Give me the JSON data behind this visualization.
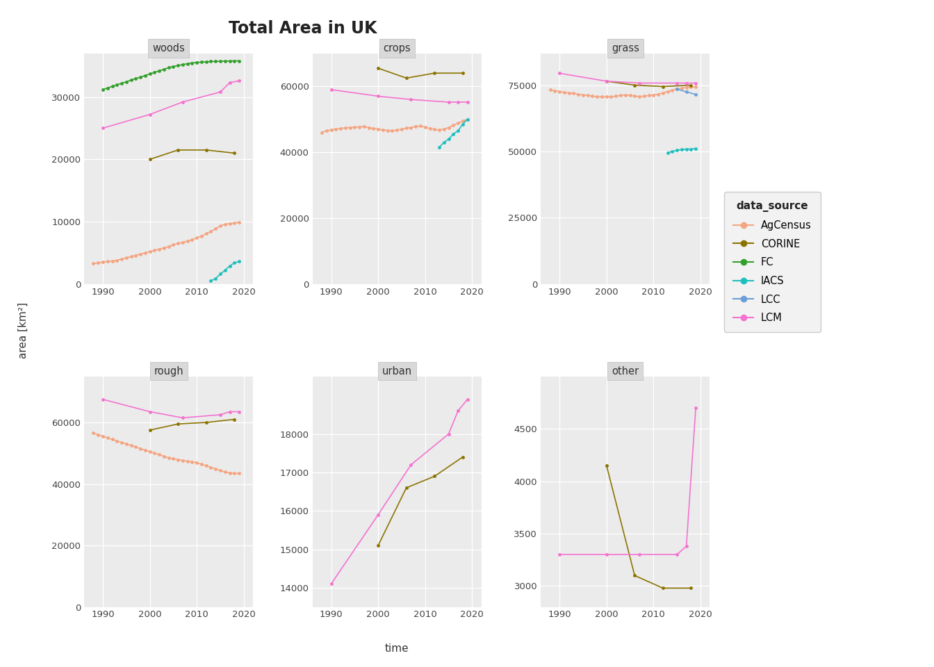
{
  "title": "Total Area in UK",
  "xlabel": "time",
  "ylabel": "area [km²]",
  "colors": {
    "AgCensus": "#F4A582",
    "CORINE": "#8B7300",
    "FC": "#33A02C",
    "IACS": "#1FBFBF",
    "LCC": "#6A9FD8",
    "LCM": "#F472D0"
  },
  "data": {
    "woods": {
      "AgCensus": {
        "years": [
          1988,
          1989,
          1990,
          1991,
          1992,
          1993,
          1994,
          1995,
          1996,
          1997,
          1998,
          1999,
          2000,
          2001,
          2002,
          2003,
          2004,
          2005,
          2006,
          2007,
          2008,
          2009,
          2010,
          2011,
          2012,
          2013,
          2014,
          2015,
          2016,
          2017,
          2018,
          2019
        ],
        "values": [
          3300,
          3400,
          3500,
          3600,
          3700,
          3800,
          4000,
          4200,
          4400,
          4600,
          4800,
          5000,
          5200,
          5400,
          5600,
          5800,
          6000,
          6300,
          6500,
          6700,
          6900,
          7100,
          7400,
          7700,
          8100,
          8400,
          8900,
          9300,
          9600,
          9700,
          9800,
          9900
        ]
      },
      "CORINE": {
        "years": [
          2000,
          2006,
          2012,
          2018
        ],
        "values": [
          20000,
          21500,
          21500,
          21000
        ]
      },
      "FC": {
        "years": [
          1990,
          1991,
          1992,
          1993,
          1994,
          1995,
          1996,
          1997,
          1998,
          1999,
          2000,
          2001,
          2002,
          2003,
          2004,
          2005,
          2006,
          2007,
          2008,
          2009,
          2010,
          2011,
          2012,
          2013,
          2014,
          2015,
          2016,
          2017,
          2018,
          2019
        ],
        "values": [
          31200,
          31450,
          31700,
          31950,
          32200,
          32450,
          32700,
          32950,
          33200,
          33450,
          33700,
          33950,
          34200,
          34450,
          34700,
          34900,
          35050,
          35200,
          35350,
          35450,
          35550,
          35600,
          35650,
          35700,
          35720,
          35740,
          35760,
          35780,
          35800,
          35800
        ]
      },
      "IACS": {
        "years": [
          2013,
          2014,
          2015,
          2016,
          2017,
          2018,
          2019
        ],
        "values": [
          500,
          900,
          1600,
          2200,
          2900,
          3400,
          3600
        ]
      },
      "LCM": {
        "years": [
          1990,
          2000,
          2007,
          2015,
          2017,
          2019
        ],
        "values": [
          25000,
          27200,
          29200,
          30800,
          32300,
          32600
        ]
      }
    },
    "crops": {
      "AgCensus": {
        "years": [
          1988,
          1989,
          1990,
          1991,
          1992,
          1993,
          1994,
          1995,
          1996,
          1997,
          1998,
          1999,
          2000,
          2001,
          2002,
          2003,
          2004,
          2005,
          2006,
          2007,
          2008,
          2009,
          2010,
          2011,
          2012,
          2013,
          2014,
          2015,
          2016,
          2017,
          2018,
          2019
        ],
        "values": [
          46000,
          46500,
          46800,
          47000,
          47200,
          47400,
          47500,
          47600,
          47700,
          47800,
          47500,
          47200,
          47000,
          46800,
          46600,
          46500,
          46700,
          47000,
          47300,
          47500,
          47800,
          48000,
          47600,
          47200,
          46900,
          46800,
          47000,
          47500,
          48200,
          48800,
          49500,
          50000
        ]
      },
      "CORINE": {
        "years": [
          2000,
          2006,
          2012,
          2018
        ],
        "values": [
          65500,
          62500,
          64000,
          64000
        ]
      },
      "IACS": {
        "years": [
          2013,
          2014,
          2015,
          2016,
          2017,
          2018,
          2019
        ],
        "values": [
          41500,
          43000,
          44000,
          45500,
          46500,
          48500,
          50000
        ]
      },
      "LCM": {
        "years": [
          1990,
          2000,
          2007,
          2015,
          2017,
          2019
        ],
        "values": [
          59000,
          57000,
          56000,
          55200,
          55200,
          55200
        ]
      }
    },
    "grass": {
      "AgCensus": {
        "years": [
          1988,
          1989,
          1990,
          1991,
          1992,
          1993,
          1994,
          1995,
          1996,
          1997,
          1998,
          1999,
          2000,
          2001,
          2002,
          2003,
          2004,
          2005,
          2006,
          2007,
          2008,
          2009,
          2010,
          2011,
          2012,
          2013,
          2014,
          2015,
          2016,
          2017,
          2018,
          2019
        ],
        "values": [
          73200,
          72900,
          72600,
          72300,
          72100,
          71900,
          71600,
          71300,
          71100,
          70900,
          70600,
          70600,
          70600,
          70600,
          70900,
          71100,
          71300,
          71100,
          70900,
          70700,
          70900,
          71100,
          71300,
          71600,
          72100,
          72600,
          73100,
          73600,
          73900,
          74100,
          74300,
          74400
        ]
      },
      "CORINE": {
        "years": [
          2000,
          2006,
          2012,
          2018
        ],
        "values": [
          76500,
          75000,
          74500,
          75000
        ]
      },
      "IACS": {
        "years": [
          2013,
          2014,
          2015,
          2016,
          2017,
          2018,
          2019
        ],
        "values": [
          49500,
          50000,
          50400,
          50700,
          50900,
          50900,
          51100
        ]
      },
      "LCC": {
        "years": [
          2015,
          2017,
          2019
        ],
        "values": [
          73500,
          72500,
          71500
        ]
      },
      "LCM": {
        "years": [
          1990,
          2000,
          2007,
          2015,
          2017,
          2019
        ],
        "values": [
          79500,
          76500,
          75800,
          75800,
          75800,
          75800
        ]
      }
    },
    "rough": {
      "AgCensus": {
        "years": [
          1988,
          1989,
          1990,
          1991,
          1992,
          1993,
          1994,
          1995,
          1996,
          1997,
          1998,
          1999,
          2000,
          2001,
          2002,
          2003,
          2004,
          2005,
          2006,
          2007,
          2008,
          2009,
          2010,
          2011,
          2012,
          2013,
          2014,
          2015,
          2016,
          2017,
          2018,
          2019
        ],
        "values": [
          56500,
          56000,
          55500,
          55000,
          54500,
          54000,
          53500,
          53000,
          52500,
          52000,
          51500,
          51000,
          50500,
          50000,
          49500,
          49000,
          48500,
          48200,
          47900,
          47600,
          47400,
          47200,
          46900,
          46400,
          45900,
          45400,
          44900,
          44400,
          43900,
          43600,
          43400,
          43400
        ]
      },
      "CORINE": {
        "years": [
          2000,
          2006,
          2012,
          2018
        ],
        "values": [
          57500,
          59500,
          60000,
          61000
        ]
      },
      "LCM": {
        "years": [
          1990,
          2000,
          2007,
          2015,
          2017,
          2019
        ],
        "values": [
          67500,
          63500,
          61500,
          62500,
          63500,
          63500
        ]
      }
    },
    "urban": {
      "CORINE": {
        "years": [
          2000,
          2006,
          2012,
          2018
        ],
        "values": [
          15100,
          16600,
          16900,
          17400
        ]
      },
      "LCM": {
        "years": [
          1990,
          2000,
          2007,
          2015,
          2017,
          2019
        ],
        "values": [
          14100,
          15900,
          17200,
          18000,
          18600,
          18900
        ]
      }
    },
    "other": {
      "CORINE": {
        "years": [
          2000,
          2006,
          2012,
          2018
        ],
        "values": [
          4150,
          3100,
          2980,
          2980
        ]
      },
      "LCM": {
        "years": [
          1990,
          2000,
          2007,
          2015,
          2017,
          2019
        ],
        "values": [
          3300,
          3300,
          3300,
          3300,
          3380,
          4700
        ]
      }
    }
  },
  "panel_ylims": {
    "woods": [
      0,
      37000
    ],
    "crops": [
      0,
      70000
    ],
    "grass": [
      0,
      87000
    ],
    "rough": [
      0,
      75000
    ],
    "urban": [
      13500,
      19500
    ],
    "other": [
      2800,
      5000
    ]
  },
  "panel_yticks": {
    "woods": [
      0,
      10000,
      20000,
      30000
    ],
    "crops": [
      0,
      20000,
      40000,
      60000
    ],
    "grass": [
      0,
      25000,
      50000,
      75000
    ],
    "rough": [
      0,
      20000,
      40000,
      60000
    ],
    "urban": [
      14000,
      15000,
      16000,
      17000,
      18000
    ],
    "other": [
      3000,
      3500,
      4000,
      4500
    ]
  }
}
